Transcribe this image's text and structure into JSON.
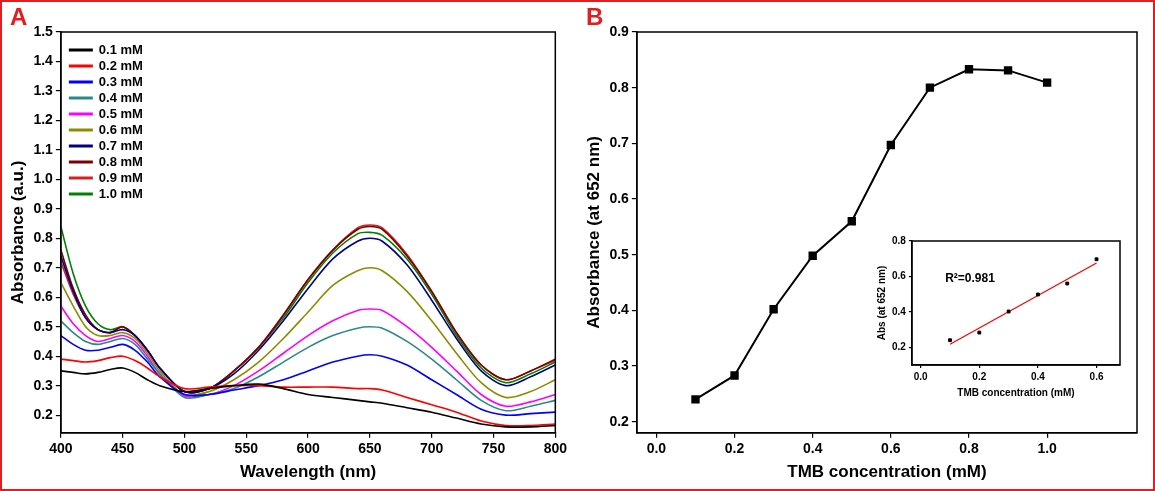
{
  "chart_data": [
    {
      "type": "line",
      "annotations": [
        "A"
      ],
      "x_label": "Wavelength (nm)",
      "y_label": "Absorbance (a.u.)",
      "x": [
        400,
        410,
        420,
        430,
        440,
        450,
        460,
        470,
        480,
        500,
        520,
        540,
        560,
        580,
        600,
        620,
        640,
        650,
        660,
        680,
        700,
        720,
        740,
        760,
        780,
        800
      ],
      "series": [
        {
          "name": "0.1 mM",
          "color": "#000000",
          "values": [
            0.35,
            0.345,
            0.34,
            0.345,
            0.355,
            0.36,
            0.345,
            0.32,
            0.3,
            0.28,
            0.29,
            0.3,
            0.305,
            0.29,
            0.27,
            0.26,
            0.25,
            0.245,
            0.24,
            0.225,
            0.21,
            0.19,
            0.17,
            0.16,
            0.16,
            0.165
          ]
        },
        {
          "name": "0.2 mM",
          "color": "#ff0000",
          "values": [
            0.39,
            0.385,
            0.38,
            0.385,
            0.395,
            0.4,
            0.385,
            0.36,
            0.33,
            0.29,
            0.295,
            0.3,
            0.3,
            0.295,
            0.295,
            0.295,
            0.29,
            0.29,
            0.285,
            0.26,
            0.235,
            0.21,
            0.18,
            0.165,
            0.165,
            0.17
          ]
        },
        {
          "name": "0.3 mM",
          "color": "#0000ff",
          "values": [
            0.47,
            0.44,
            0.42,
            0.42,
            0.43,
            0.44,
            0.42,
            0.38,
            0.33,
            0.27,
            0.27,
            0.285,
            0.3,
            0.32,
            0.35,
            0.38,
            0.4,
            0.405,
            0.4,
            0.37,
            0.32,
            0.27,
            0.22,
            0.2,
            0.205,
            0.21
          ]
        },
        {
          "name": "0.4 mM",
          "color": "#2a8a8a",
          "values": [
            0.52,
            0.48,
            0.45,
            0.44,
            0.45,
            0.46,
            0.44,
            0.39,
            0.34,
            0.26,
            0.27,
            0.29,
            0.33,
            0.38,
            0.43,
            0.47,
            0.495,
            0.5,
            0.495,
            0.45,
            0.39,
            0.32,
            0.25,
            0.215,
            0.23,
            0.25
          ]
        },
        {
          "name": "0.5 mM",
          "color": "#ff00ff",
          "values": [
            0.57,
            0.51,
            0.47,
            0.45,
            0.46,
            0.47,
            0.45,
            0.4,
            0.34,
            0.265,
            0.27,
            0.3,
            0.35,
            0.41,
            0.47,
            0.52,
            0.555,
            0.56,
            0.555,
            0.5,
            0.43,
            0.35,
            0.27,
            0.23,
            0.245,
            0.27
          ]
        },
        {
          "name": "0.6 mM",
          "color": "#8c8c00",
          "values": [
            0.65,
            0.57,
            0.5,
            0.47,
            0.47,
            0.48,
            0.46,
            0.41,
            0.35,
            0.27,
            0.28,
            0.32,
            0.38,
            0.46,
            0.55,
            0.64,
            0.69,
            0.7,
            0.69,
            0.62,
            0.52,
            0.41,
            0.31,
            0.26,
            0.28,
            0.32
          ]
        },
        {
          "name": "0.7 mM",
          "color": "#000080",
          "values": [
            0.74,
            0.62,
            0.53,
            0.49,
            0.48,
            0.49,
            0.47,
            0.42,
            0.36,
            0.28,
            0.29,
            0.34,
            0.42,
            0.52,
            0.63,
            0.73,
            0.79,
            0.8,
            0.79,
            0.71,
            0.59,
            0.46,
            0.35,
            0.3,
            0.33,
            0.37
          ]
        },
        {
          "name": "0.8 mM",
          "color": "#7a0000",
          "values": [
            0.76,
            0.63,
            0.54,
            0.49,
            0.48,
            0.5,
            0.47,
            0.42,
            0.36,
            0.28,
            0.29,
            0.35,
            0.43,
            0.54,
            0.66,
            0.76,
            0.83,
            0.84,
            0.83,
            0.74,
            0.62,
            0.48,
            0.37,
            0.32,
            0.35,
            0.39
          ]
        },
        {
          "name": "0.9 mM",
          "color": "#d42020",
          "values": [
            0.72,
            0.61,
            0.53,
            0.49,
            0.48,
            0.5,
            0.47,
            0.42,
            0.36,
            0.28,
            0.29,
            0.35,
            0.43,
            0.54,
            0.66,
            0.76,
            0.835,
            0.845,
            0.835,
            0.745,
            0.62,
            0.48,
            0.37,
            0.32,
            0.35,
            0.385
          ]
        },
        {
          "name": "1.0 mM",
          "color": "#008000",
          "values": [
            0.84,
            0.68,
            0.57,
            0.51,
            0.49,
            0.5,
            0.47,
            0.42,
            0.36,
            0.28,
            0.29,
            0.35,
            0.43,
            0.53,
            0.65,
            0.75,
            0.815,
            0.82,
            0.81,
            0.73,
            0.61,
            0.47,
            0.36,
            0.31,
            0.34,
            0.38
          ]
        }
      ],
      "xlim": [
        400,
        800
      ],
      "xticks": [
        400,
        450,
        500,
        550,
        600,
        650,
        700,
        750,
        800
      ],
      "ylim": [
        0.14,
        1.5
      ],
      "yticks": [
        0.2,
        0.3,
        0.4,
        0.5,
        0.6,
        0.7,
        0.8,
        0.9,
        {
          "value": 1,
          "label": "1.0"
        },
        1.1,
        1.2,
        1.3,
        1.4,
        1.5
      ],
      "grid": false,
      "legend": "upper left",
      "line_style": "solid"
    },
    {
      "type": "line",
      "annotations": [
        "B"
      ],
      "x_label": "TMB concentration (mM)",
      "y_label": "Absorbance (at 652 nm)",
      "x": [
        0.1,
        0.2,
        0.3,
        0.4,
        0.5,
        0.6,
        0.7,
        0.8,
        0.9,
        1.0
      ],
      "values": [
        0.24,
        0.283,
        0.402,
        0.498,
        0.56,
        0.697,
        0.8,
        0.833,
        0.831,
        0.809
      ],
      "color": "#000000",
      "marker": "square",
      "line_style": "solid",
      "xlim": [
        -0.05,
        1.23
      ],
      "xticks": [
        {
          "value": 0,
          "label": "0.0"
        },
        0.2,
        0.4,
        0.6,
        0.8,
        {
          "value": 1,
          "label": "1.0"
        }
      ],
      "ylim": [
        0.18,
        0.9
      ],
      "yticks": [
        0.2,
        0.3,
        0.4,
        0.5,
        0.6,
        0.7,
        0.8,
        0.9
      ],
      "grid": false
    },
    {
      "type": "scatter",
      "annotations": [
        "R²=0.981"
      ],
      "x_label": "TMB concentration (mM)",
      "y_label": "Abs (at 652 nm)",
      "x": [
        0.1,
        0.2,
        0.3,
        0.4,
        0.5,
        0.6
      ],
      "values": [
        0.24,
        0.283,
        0.402,
        0.498,
        0.56,
        0.697
      ],
      "color": "#000000",
      "marker": "square",
      "fit": {
        "x": [
          0.1,
          0.6
        ],
        "values": [
          0.217,
          0.676
        ],
        "color": "#ff0000",
        "line_style": "solid"
      },
      "xlim": [
        -0.03,
        0.68
      ],
      "xticks": [
        {
          "value": 0,
          "label": "0.0"
        },
        0.2,
        0.4,
        0.6
      ],
      "ylim": [
        0.1,
        0.8
      ],
      "yticks": [
        0.2,
        0.4,
        0.6,
        0.8
      ],
      "grid": false
    }
  ]
}
